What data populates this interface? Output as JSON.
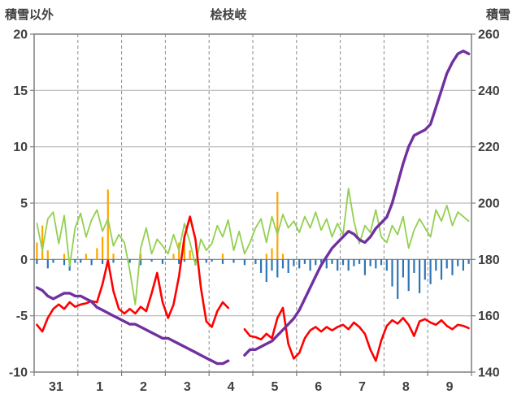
{
  "header": {
    "left_axis_title": "積雪以外",
    "title": "桧枝岐",
    "right_axis_title": "積雪"
  },
  "chart_data": {
    "type": "line",
    "title": "桧枝岐",
    "left_axis": {
      "title": "積雪以外",
      "min": -10,
      "max": 20,
      "ticks": [
        20,
        15,
        10,
        5,
        0,
        -5,
        -10
      ]
    },
    "right_axis": {
      "title": "積雪",
      "min": 140,
      "max": 260,
      "ticks": [
        260,
        240,
        220,
        200,
        180,
        160,
        140
      ]
    },
    "x_axis": {
      "labels": [
        "31",
        "1",
        "2",
        "3",
        "4",
        "5",
        "6",
        "7",
        "8",
        "9"
      ],
      "points_per_day": 8
    },
    "style": {
      "grid_color": "#ABABAB",
      "dash_color": "#8C8C8C",
      "axis_color": "#7F7F7F",
      "tick_label_color": "#404040",
      "background": "#FFFFFF"
    },
    "series": [
      {
        "name": "orange-bars",
        "kind": "bar",
        "axis": "left",
        "color": "#FFA500",
        "width": 2.2,
        "values": [
          1.5,
          3.0,
          0.8,
          0,
          0,
          0.5,
          0,
          0,
          0,
          0.5,
          0,
          1.0,
          2.0,
          6.2,
          0.5,
          0,
          0,
          0,
          0,
          0.5,
          0,
          0,
          0,
          0,
          0,
          0.5,
          1.5,
          2.2,
          0.8,
          0,
          0,
          0,
          0,
          0,
          0.5,
          0,
          0,
          0,
          0,
          0,
          0,
          0,
          0.5,
          1.0,
          6.0,
          0.5,
          0,
          0,
          0,
          0,
          0,
          0,
          0,
          0,
          0,
          0,
          0,
          0,
          0,
          0,
          0,
          0,
          0,
          0,
          0,
          0,
          0,
          0,
          0,
          0,
          0,
          0,
          0,
          0,
          0,
          0,
          0,
          0,
          0,
          0
        ]
      },
      {
        "name": "blue-bars",
        "kind": "bar",
        "axis": "left",
        "color": "#2E75B6",
        "width": 2.2,
        "values": [
          -0.4,
          0,
          -0.8,
          -0.3,
          0,
          -0.5,
          -1.0,
          -0.3,
          -0.3,
          0,
          -0.5,
          0,
          -0.4,
          0,
          -0.3,
          0,
          0,
          -0.3,
          0,
          -0.5,
          0,
          -0.2,
          0,
          -0.4,
          0,
          0,
          -0.4,
          -0.2,
          0,
          -0.5,
          0,
          -0.3,
          -0.2,
          0,
          -0.4,
          0,
          -0.3,
          0,
          -0.5,
          0,
          -0.4,
          -1.2,
          -2.0,
          -1.0,
          -1.6,
          -0.8,
          -1.2,
          -0.6,
          -0.8,
          -0.4,
          -1.0,
          -0.5,
          -0.3,
          -0.8,
          -0.4,
          -1.0,
          -0.5,
          -1.0,
          -0.6,
          -0.4,
          -1.4,
          -0.6,
          -0.8,
          -0.5,
          -1.0,
          -2.4,
          -3.5,
          -1.6,
          -2.8,
          -1.2,
          -3.0,
          -1.8,
          -2.2,
          -1.0,
          -1.8,
          -0.8,
          -1.4,
          -0.6,
          -1.0,
          -0.4
        ]
      },
      {
        "name": "green-line",
        "kind": "line",
        "axis": "left",
        "color": "#92D050",
        "width": 1.8,
        "values": [
          3.2,
          0.8,
          3.6,
          4.2,
          1.4,
          3.9,
          -0.6,
          2.8,
          4.1,
          2.0,
          3.5,
          4.4,
          2.5,
          3.6,
          1.2,
          2.2,
          1.5,
          -1.0,
          -4.0,
          1.0,
          2.8,
          0.5,
          1.8,
          1.2,
          0.5,
          2.2,
          0.8,
          3.2,
          1.5,
          -0.5,
          1.8,
          0.8,
          1.4,
          3.0,
          2.0,
          3.5,
          0.8,
          2.5,
          0.5,
          1.5,
          2.8,
          3.6,
          1.5,
          3.8,
          2.2,
          4.0,
          2.8,
          3.4,
          2.4,
          3.8,
          2.8,
          4.2,
          2.6,
          3.6,
          2.0,
          3.2,
          2.2,
          6.3,
          3.4,
          1.4,
          3.0,
          2.4,
          4.4,
          2.0,
          1.5,
          3.0,
          2.2,
          3.8,
          1.0,
          2.6,
          3.6,
          2.8,
          2.0,
          4.4,
          3.4,
          4.8,
          3.0,
          4.2,
          3.8,
          3.4
        ]
      },
      {
        "name": "red-line",
        "kind": "line",
        "axis": "left",
        "color": "#FF0000",
        "width": 2.6,
        "values": [
          -5.8,
          -6.4,
          -5.2,
          -4.4,
          -4.0,
          -4.4,
          -3.8,
          -4.2,
          -4.0,
          -3.9,
          -3.7,
          -3.8,
          -2.2,
          -0.1,
          -2.8,
          -4.4,
          -4.8,
          -4.4,
          -4.8,
          -4.2,
          -4.6,
          -3.0,
          -1.2,
          -3.8,
          -5.2,
          -4.0,
          -1.5,
          2.0,
          3.8,
          1.8,
          -2.5,
          -5.5,
          -6.0,
          -4.6,
          -3.8,
          -4.3,
          null,
          null,
          -6.2,
          -6.8,
          -6.9,
          -7.1,
          -6.6,
          -7.0,
          -5.2,
          -4.3,
          -7.5,
          -8.8,
          -8.3,
          -7.0,
          -6.3,
          -6.0,
          -6.4,
          -6.0,
          -6.3,
          -6.0,
          -5.8,
          -6.2,
          -5.6,
          -6.0,
          -6.6,
          -8.0,
          -9.0,
          -7.2,
          -5.9,
          -5.4,
          -5.7,
          -5.2,
          -5.8,
          -6.8,
          -5.5,
          -5.3,
          -5.6,
          -5.8,
          -5.4,
          -5.9,
          -6.2,
          -5.8,
          -5.9,
          -6.1
        ]
      },
      {
        "name": "snow-depth-line",
        "kind": "line",
        "axis": "right",
        "color": "#7030A0",
        "width": 3.4,
        "values": [
          170,
          169,
          167,
          166,
          167,
          168,
          168,
          167,
          167,
          166,
          165,
          163,
          162,
          161,
          160,
          159,
          158,
          157,
          157,
          156,
          155,
          154,
          153,
          152,
          152,
          151,
          150,
          149,
          148,
          147,
          146,
          145,
          144,
          143,
          143,
          144,
          null,
          null,
          146,
          148,
          148,
          149,
          150,
          151,
          153,
          155,
          157,
          159,
          162,
          166,
          170,
          174,
          178,
          181,
          184,
          186,
          188,
          190,
          189,
          187,
          186,
          188,
          191,
          193,
          195,
          200,
          207,
          214,
          220,
          224,
          225,
          226,
          228,
          234,
          240,
          246,
          250,
          253,
          254,
          253
        ]
      }
    ]
  }
}
